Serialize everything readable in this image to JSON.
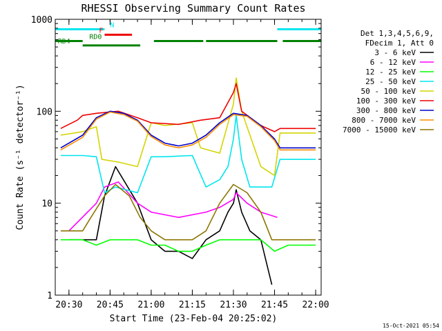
{
  "chart_data": {
    "type": "line",
    "title": "RHESSI Observing Summary Count Rates",
    "xlabel": "Start Time (23-Feb-04 20:25:02)",
    "ylabel": "Count Rate (s⁻¹ detector⁻¹)",
    "yscale": "log",
    "ylim": [
      1,
      1000
    ],
    "xlim": [
      "20:25",
      "22:02"
    ],
    "x_ticks": [
      "20:30",
      "20:45",
      "21:00",
      "21:15",
      "21:30",
      "21:45",
      "22:00"
    ],
    "y_ticks": [
      "1",
      "10",
      "100",
      "1000"
    ],
    "legend_title": [
      "Det 1,3,4,5,6,9,",
      "FDecim 1, Att 0"
    ],
    "legend_position": "right",
    "footer": "15-Oct-2021 05:54",
    "flags": [
      {
        "label": "N",
        "color": "#00e5ee",
        "level": 780,
        "segments": [
          [
            "20:25",
            "20:43"
          ],
          [
            "21:46",
            "22:02"
          ]
        ]
      },
      {
        "label": "F",
        "color": "#ee0000",
        "level": 680,
        "segments": [
          [
            "20:43",
            "20:53"
          ]
        ]
      },
      {
        "label": "RD0",
        "color": "#008000",
        "level": 580,
        "segments": [
          [
            "20:25",
            "20:35"
          ],
          [
            "21:01",
            "21:19"
          ],
          [
            "21:20",
            "21:46"
          ],
          [
            "21:48",
            "22:02"
          ]
        ]
      },
      {
        "label": "RD4",
        "color": "#008000",
        "level": 520,
        "segments": [
          [
            "20:35",
            "20:56"
          ]
        ]
      }
    ],
    "series": [
      {
        "name": "3 - 6 keV",
        "color": "#000000",
        "x": [
          "20:30",
          "20:40",
          "20:43",
          "20:47",
          "20:55",
          "21:00",
          "21:05",
          "21:10",
          "21:15",
          "21:20",
          "21:25",
          "21:28",
          "21:30",
          "21:31",
          "21:33",
          "21:36",
          "21:40",
          "21:44"
        ],
        "values": [
          4,
          4,
          12,
          25,
          10,
          4,
          3,
          3,
          2.5,
          4,
          5,
          8,
          10,
          14,
          8,
          5,
          4,
          1.3
        ]
      },
      {
        "name": "6 - 12 keV",
        "color": "#ff00ff",
        "x": [
          "20:30",
          "20:40",
          "20:43",
          "20:48",
          "20:55",
          "21:00",
          "21:10",
          "21:20",
          "21:25",
          "21:30",
          "21:31",
          "21:35",
          "21:40",
          "21:46"
        ],
        "values": [
          5,
          10,
          15,
          17,
          10,
          8,
          7,
          8,
          9,
          11,
          13,
          10,
          8,
          7
        ]
      },
      {
        "name": "12 - 25 keV",
        "color": "#00ff00",
        "x": [
          "20:27",
          "20:35",
          "20:40",
          "20:45",
          "20:50",
          "20:55",
          "21:00",
          "21:05",
          "21:10",
          "21:15",
          "21:20",
          "21:25",
          "21:30",
          "21:35",
          "21:40",
          "21:45",
          "21:50",
          "21:55",
          "22:00"
        ],
        "values": [
          4,
          4,
          3.5,
          4,
          4,
          4,
          3.5,
          3.5,
          3,
          3,
          3.5,
          4,
          4,
          4,
          4,
          3,
          3.5,
          3.5,
          3.5
        ]
      },
      {
        "name": "25 - 50 keV",
        "color": "#00e5ee",
        "x": [
          "20:27",
          "20:35",
          "20:40",
          "20:43",
          "20:47",
          "20:55",
          "21:00",
          "21:05",
          "21:15",
          "21:20",
          "21:25",
          "21:28",
          "21:30",
          "21:31",
          "21:33",
          "21:36",
          "21:44",
          "21:47",
          "21:55",
          "22:00"
        ],
        "values": [
          33,
          33,
          32,
          13,
          15,
          13,
          32,
          32,
          33,
          15,
          18,
          25,
          50,
          90,
          30,
          15,
          15,
          30,
          30,
          30
        ]
      },
      {
        "name": "50 - 100 keV",
        "color": "#d4d400",
        "x": [
          "20:27",
          "20:35",
          "20:40",
          "20:42",
          "20:48",
          "20:55",
          "21:00",
          "21:05",
          "21:15",
          "21:18",
          "21:25",
          "21:30",
          "21:31",
          "21:33",
          "21:40",
          "21:45",
          "21:47",
          "21:55",
          "22:00"
        ],
        "values": [
          55,
          60,
          68,
          30,
          28,
          25,
          75,
          70,
          75,
          40,
          35,
          120,
          230,
          100,
          25,
          20,
          58,
          58,
          58
        ]
      },
      {
        "name": "100 - 300 keV",
        "color": "#ee0000",
        "x": [
          "20:27",
          "20:33",
          "20:35",
          "20:40",
          "20:48",
          "20:55",
          "21:00",
          "21:10",
          "21:18",
          "21:25",
          "21:30",
          "21:31",
          "21:33",
          "21:40",
          "21:45",
          "21:47",
          "21:55",
          "22:00"
        ],
        "values": [
          65,
          80,
          90,
          95,
          100,
          85,
          75,
          72,
          80,
          85,
          160,
          200,
          100,
          70,
          60,
          65,
          65,
          65
        ]
      },
      {
        "name": "300 - 800 keV",
        "color": "#0000cc",
        "x": [
          "20:27",
          "20:35",
          "20:40",
          "20:45",
          "20:50",
          "20:55",
          "21:00",
          "21:05",
          "21:10",
          "21:15",
          "21:20",
          "21:25",
          "21:30",
          "21:35",
          "21:40",
          "21:45",
          "21:47",
          "21:55",
          "22:00"
        ],
        "values": [
          40,
          55,
          85,
          100,
          95,
          80,
          55,
          45,
          42,
          45,
          55,
          75,
          95,
          90,
          70,
          50,
          40,
          40,
          40
        ]
      },
      {
        "name": "800 - 7000 keV",
        "color": "#ff8c00",
        "x": [
          "20:27",
          "20:35",
          "20:40",
          "20:45",
          "20:50",
          "20:55",
          "21:00",
          "21:05",
          "21:10",
          "21:15",
          "21:20",
          "21:25",
          "21:30",
          "21:35",
          "21:40",
          "21:45",
          "21:47",
          "21:55",
          "22:00"
        ],
        "values": [
          38,
          52,
          82,
          98,
          92,
          78,
          53,
          43,
          40,
          43,
          52,
          72,
          92,
          88,
          68,
          48,
          38,
          38,
          38
        ]
      },
      {
        "name": "7000 - 15000 keV",
        "color": "#8b7500",
        "x": [
          "20:27",
          "20:35",
          "20:38",
          "20:43",
          "20:47",
          "20:52",
          "20:56",
          "21:00",
          "21:05",
          "21:10",
          "21:15",
          "21:20",
          "21:25",
          "21:30",
          "21:35",
          "21:40",
          "21:44",
          "21:47",
          "21:55",
          "22:00"
        ],
        "values": [
          5,
          5,
          7,
          12,
          16,
          12,
          7,
          5,
          4,
          4,
          4,
          5,
          10,
          16,
          13,
          8,
          4,
          4,
          4,
          4
        ]
      }
    ]
  }
}
